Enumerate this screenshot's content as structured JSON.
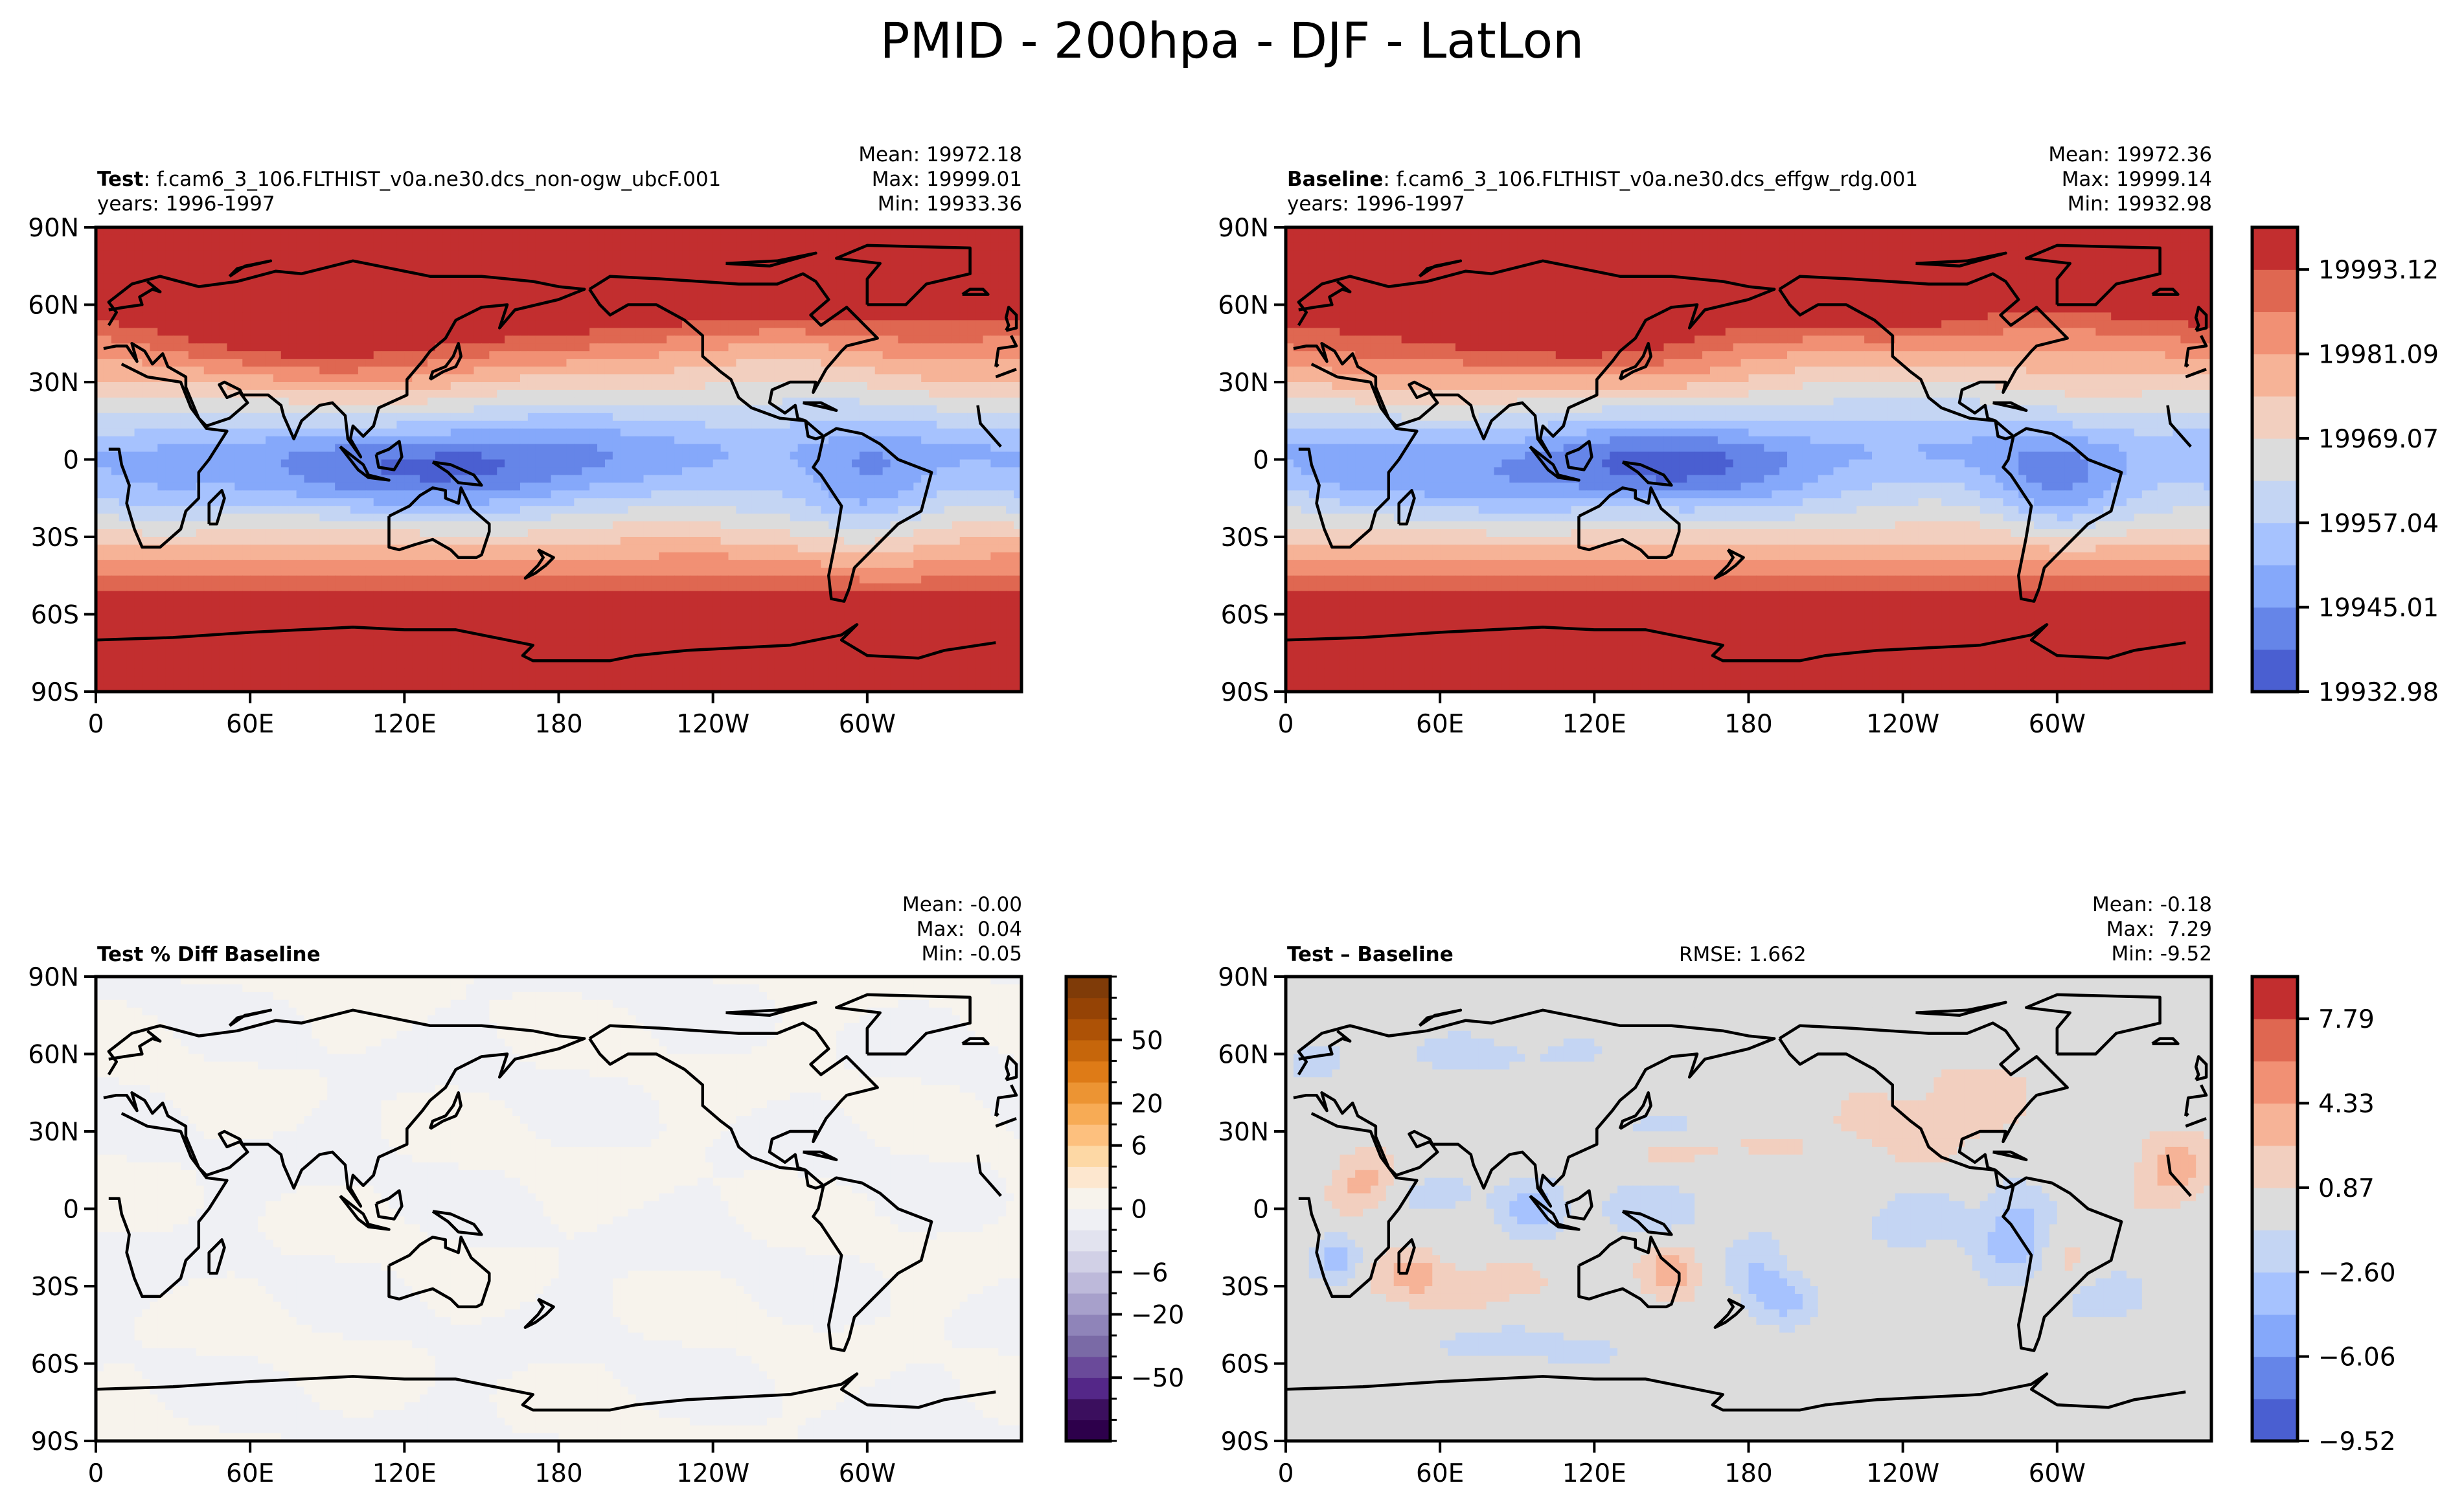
{
  "figure": {
    "title": "PMID - 200hpa - DJF - LatLon"
  },
  "chart_data": [
    {
      "type": "heatmap",
      "panel": "test",
      "title_bold": "Test",
      "title_rest": ": f.cam6_3_106.FLTHIST_v0a.ne30.dcs_non-ogw_ubcF.001",
      "subtitle": "years: 1996-1997",
      "stats": {
        "mean": "Mean: 19972.18",
        "max": "Max: 19999.01",
        "min": "Min: 19933.36"
      },
      "xlabel": "",
      "ylabel": "",
      "xticks": [
        "0",
        "60E",
        "120E",
        "180",
        "120W",
        "60W"
      ],
      "yticks": [
        "90N",
        "60N",
        "30N",
        "0",
        "30S",
        "60S",
        "90S"
      ],
      "xlim": [
        0,
        360
      ],
      "ylim": [
        -90,
        90
      ],
      "colormap": "coolwarm",
      "levels_min": 19932.98,
      "levels_max": 19999.14,
      "pattern": "High values (red) in polar/extratropical regions, low values (blue) in the deep tropics, minima over Maritime Continent and Amazon."
    },
    {
      "type": "heatmap",
      "panel": "baseline",
      "title_bold": "Baseline",
      "title_rest": ": f.cam6_3_106.FLTHIST_v0a.ne30.dcs_effgw_rdg.001",
      "subtitle": "years: 1996-1997",
      "stats": {
        "mean": "Mean: 19972.36",
        "max": "Max: 19999.14",
        "min": "Min: 19932.98"
      },
      "xticks": [
        "0",
        "60E",
        "120E",
        "180",
        "120W",
        "60W"
      ],
      "yticks": [
        "90N",
        "60N",
        "30N",
        "0",
        "30S",
        "60S",
        "90S"
      ],
      "xlim": [
        0,
        360
      ],
      "ylim": [
        -90,
        90
      ],
      "colorbar": {
        "ticks": [
          "19993.12",
          "19981.09",
          "19969.07",
          "19957.04",
          "19945.01",
          "19932.98"
        ],
        "colors": [
          "#4a5fd1",
          "#6585e8",
          "#85a8fa",
          "#a6c2fe",
          "#c4d5f3",
          "#dcdcdc",
          "#f2cfbf",
          "#f6b397",
          "#f19074",
          "#df6751",
          "#c22e2f"
        ]
      }
    },
    {
      "type": "heatmap",
      "panel": "percent_diff",
      "title_bold": "Test % Diff Baseline",
      "stats": {
        "mean": "Mean: -0.00",
        "max": "Max:  0.04",
        "min": "Min: -0.05"
      },
      "xticks": [
        "0",
        "60E",
        "120E",
        "180",
        "120W",
        "60W"
      ],
      "yticks": [
        "90N",
        "60N",
        "30N",
        "0",
        "30S",
        "60S",
        "90S"
      ],
      "xlim": [
        0,
        360
      ],
      "ylim": [
        -90,
        90
      ],
      "colorbar": {
        "ticks": [
          "50",
          "20",
          "6",
          "0",
          "−6",
          "−20",
          "−50"
        ],
        "colors": [
          "#2d004b",
          "#3b0f5e",
          "#542788",
          "#6a4a9a",
          "#7a6aa6",
          "#8f84b9",
          "#a7a0cb",
          "#bdb9da",
          "#d1d0e6",
          "#e2e3ef",
          "#eff0f4",
          "#f7f3ec",
          "#fde7cf",
          "#fdd8a5",
          "#fdc07e",
          "#f7ab55",
          "#ec9433",
          "#de7b17",
          "#c6660b",
          "#ad5206",
          "#954305",
          "#7f3b08"
        ]
      }
    },
    {
      "type": "heatmap",
      "panel": "difference",
      "title_bold": "Test – Baseline",
      "rmse": "RMSE: 1.662",
      "stats": {
        "mean": "Mean: -0.18",
        "max": "Max:  7.29",
        "min": "Min: -9.52"
      },
      "xticks": [
        "0",
        "60E",
        "120E",
        "180",
        "120W",
        "60W"
      ],
      "yticks": [
        "90N",
        "60N",
        "30N",
        "0",
        "30S",
        "60S",
        "90S"
      ],
      "xlim": [
        0,
        360
      ],
      "ylim": [
        -90,
        90
      ],
      "colorbar": {
        "ticks": [
          "7.79",
          "4.33",
          "0.87",
          "−2.60",
          "−6.06",
          "−9.52"
        ],
        "colors": [
          "#4a5fd1",
          "#6585e8",
          "#85a8fa",
          "#a6c2fe",
          "#c4d5f3",
          "#dcdcdc",
          "#f2cfbf",
          "#f6b397",
          "#f19074",
          "#df6751",
          "#c22e2f"
        ]
      }
    }
  ]
}
